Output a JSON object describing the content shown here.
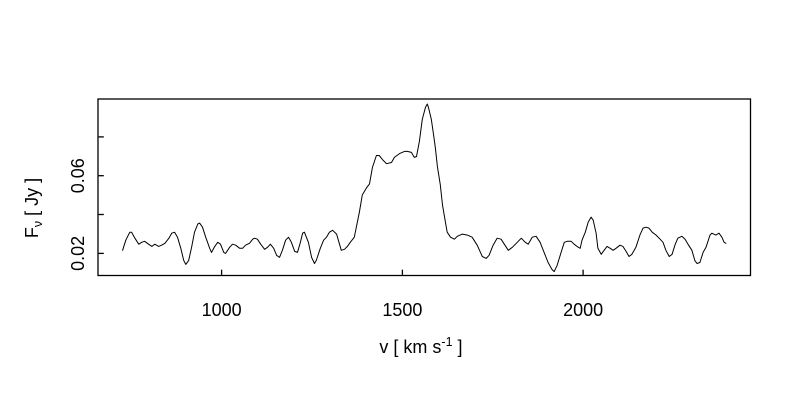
{
  "figure": {
    "background_color": "#ffffff",
    "axis_color": "#000000",
    "line_color": "#000000"
  },
  "chart_data": {
    "type": "line",
    "title": "",
    "xlabel": "v [ km s⁻¹ ]",
    "xlabel_prefix": "v [ km s",
    "xlabel_sup": "-1",
    "xlabel_suffix": " ]",
    "ylabel": "Fν [ Jy ]",
    "ylabel_main": "F",
    "ylabel_sub": "ν",
    "ylabel_suffix": " [ Jy ]",
    "xlim": [
      658,
      2463
    ],
    "ylim": [
      0.0086,
      0.0995
    ],
    "x_ticks": [
      1000,
      1500,
      2000
    ],
    "x_tick_labels": [
      "1000",
      "1500",
      "2000"
    ],
    "y_ticks": [
      0.02,
      0.04,
      0.06,
      0.08
    ],
    "y_labeled_ticks": [
      0.02,
      0.06
    ],
    "y_tick_labels": [
      "0.02",
      "0.06"
    ],
    "grid": false,
    "legend": null,
    "tick_direction": "in",
    "x": [
      726,
      735,
      746,
      751,
      760,
      771,
      779,
      787,
      798,
      807,
      815,
      826,
      834,
      843,
      854,
      862,
      870,
      878,
      887,
      895,
      901,
      909,
      917,
      925,
      934,
      939,
      947,
      956,
      967,
      972,
      981,
      989,
      997,
      1006,
      1011,
      1022,
      1030,
      1039,
      1050,
      1058,
      1066,
      1077,
      1086,
      1091,
      1099,
      1108,
      1119,
      1127,
      1135,
      1144,
      1152,
      1160,
      1168,
      1177,
      1185,
      1193,
      1202,
      1210,
      1218,
      1224,
      1229,
      1240,
      1249,
      1257,
      1262,
      1273,
      1282,
      1290,
      1298,
      1307,
      1318,
      1331,
      1340,
      1348,
      1356,
      1367,
      1381,
      1389,
      1401,
      1409,
      1417,
      1428,
      1436,
      1445,
      1456,
      1470,
      1478,
      1492,
      1506,
      1514,
      1525,
      1533,
      1539,
      1547,
      1555,
      1564,
      1569,
      1572,
      1580,
      1586,
      1591,
      1597,
      1605,
      1611,
      1619,
      1624,
      1633,
      1644,
      1652,
      1666,
      1680,
      1693,
      1707,
      1721,
      1732,
      1740,
      1751,
      1762,
      1773,
      1782,
      1793,
      1804,
      1815,
      1829,
      1840,
      1848,
      1859,
      1870,
      1881,
      1892,
      1903,
      1914,
      1920,
      1928,
      1939,
      1948,
      1956,
      1967,
      1975,
      1983,
      1992,
      1997,
      2006,
      2014,
      2022,
      2028,
      2036,
      2041,
      2050,
      2058,
      2066,
      2075,
      2083,
      2091,
      2102,
      2110,
      2119,
      2127,
      2135,
      2146,
      2157,
      2166,
      2174,
      2182,
      2191,
      2202,
      2213,
      2221,
      2229,
      2238,
      2246,
      2254,
      2262,
      2273,
      2282,
      2290,
      2301,
      2309,
      2315,
      2323,
      2332,
      2340,
      2351,
      2356,
      2367,
      2376,
      2384,
      2390,
      2395
    ],
    "y": [
      0.0216,
      0.0268,
      0.0309,
      0.0309,
      0.0278,
      0.0247,
      0.0257,
      0.0262,
      0.0247,
      0.0236,
      0.0247,
      0.0236,
      0.0242,
      0.0252,
      0.0278,
      0.0304,
      0.0309,
      0.0283,
      0.0226,
      0.0164,
      0.0143,
      0.0164,
      0.0231,
      0.0309,
      0.0351,
      0.0356,
      0.0335,
      0.0283,
      0.0226,
      0.0205,
      0.0236,
      0.0257,
      0.0247,
      0.0205,
      0.02,
      0.0231,
      0.0247,
      0.0242,
      0.0226,
      0.0226,
      0.0242,
      0.0252,
      0.0273,
      0.0278,
      0.0273,
      0.0247,
      0.0221,
      0.0231,
      0.0247,
      0.0226,
      0.019,
      0.0179,
      0.0216,
      0.0268,
      0.0283,
      0.0257,
      0.021,
      0.0205,
      0.0257,
      0.0304,
      0.0309,
      0.0257,
      0.0179,
      0.0148,
      0.0164,
      0.0226,
      0.0268,
      0.0283,
      0.0309,
      0.0319,
      0.0299,
      0.0216,
      0.0221,
      0.0236,
      0.0257,
      0.0283,
      0.0413,
      0.0501,
      0.0538,
      0.0558,
      0.0642,
      0.0704,
      0.0704,
      0.0683,
      0.0662,
      0.0668,
      0.0694,
      0.0714,
      0.0725,
      0.0725,
      0.072,
      0.0694,
      0.0699,
      0.0777,
      0.0891,
      0.0953,
      0.0969,
      0.0953,
      0.0891,
      0.0813,
      0.0746,
      0.0647,
      0.0553,
      0.0449,
      0.0361,
      0.0309,
      0.0283,
      0.0273,
      0.0288,
      0.0299,
      0.0294,
      0.0283,
      0.0242,
      0.0184,
      0.0174,
      0.019,
      0.0242,
      0.0278,
      0.0273,
      0.0247,
      0.0216,
      0.0231,
      0.0252,
      0.0278,
      0.0257,
      0.0247,
      0.0283,
      0.0288,
      0.0257,
      0.0205,
      0.0153,
      0.0117,
      0.0106,
      0.0138,
      0.0205,
      0.0257,
      0.0262,
      0.0262,
      0.0247,
      0.0236,
      0.0226,
      0.0268,
      0.0309,
      0.0361,
      0.0387,
      0.0371,
      0.0304,
      0.0226,
      0.0195,
      0.0216,
      0.0236,
      0.0226,
      0.0216,
      0.0226,
      0.0242,
      0.0236,
      0.021,
      0.0184,
      0.0195,
      0.0231,
      0.0294,
      0.033,
      0.0335,
      0.033,
      0.0309,
      0.0294,
      0.0273,
      0.0257,
      0.0216,
      0.0184,
      0.0195,
      0.0242,
      0.0278,
      0.0288,
      0.0273,
      0.0247,
      0.0216,
      0.0164,
      0.0148,
      0.0153,
      0.0205,
      0.0231,
      0.0294,
      0.0304,
      0.0294,
      0.0304,
      0.0283,
      0.0257,
      0.0252
    ]
  }
}
